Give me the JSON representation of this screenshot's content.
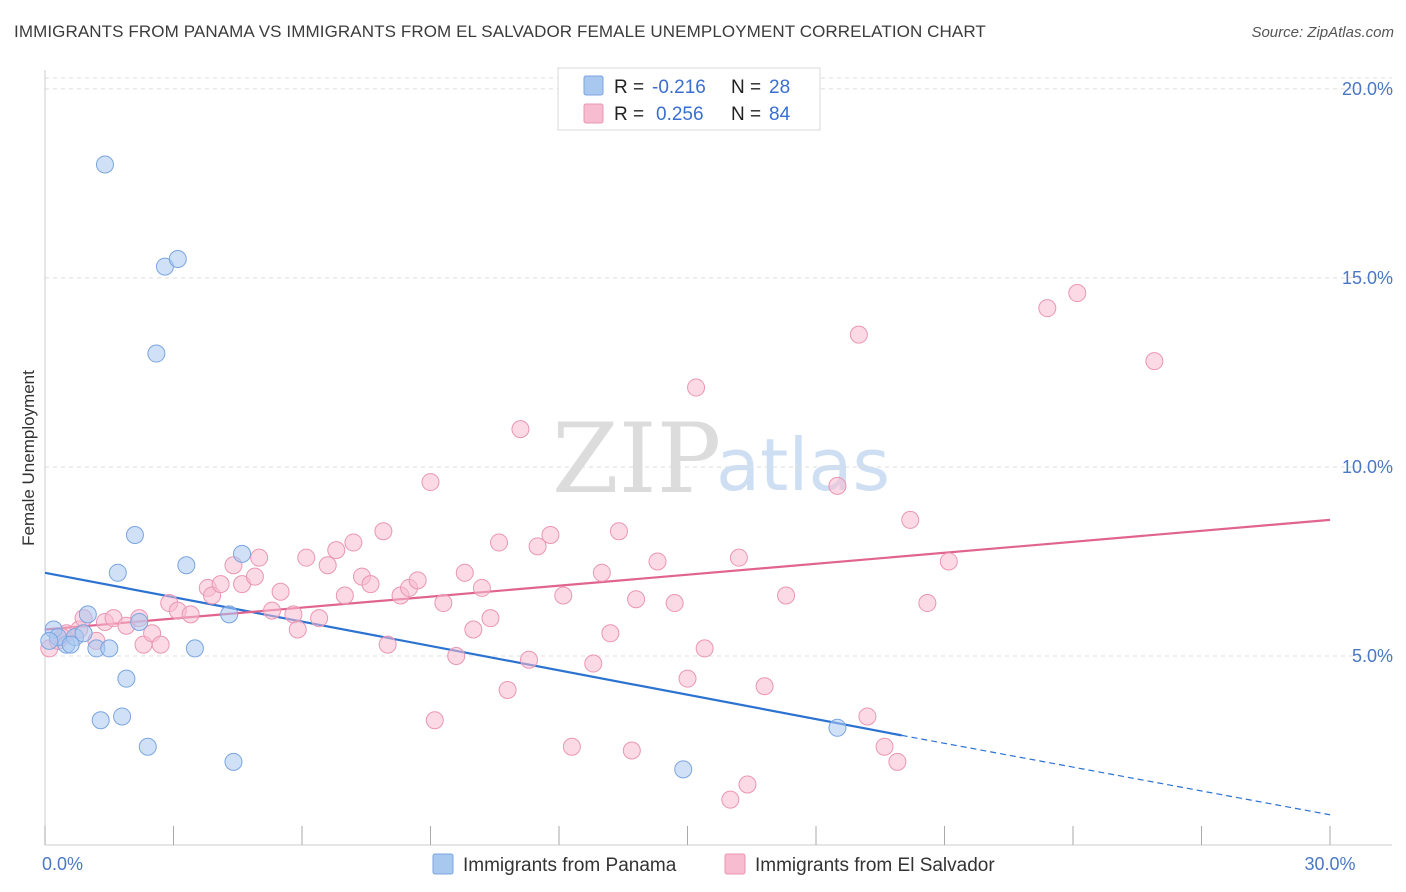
{
  "header": {
    "title": "IMMIGRANTS FROM PANAMA VS IMMIGRANTS FROM EL SALVADOR FEMALE UNEMPLOYMENT CORRELATION CHART",
    "source": "Source: ZipAtlas.com"
  },
  "watermark": {
    "zip": "ZIP",
    "atlas": "atlas"
  },
  "stats": {
    "r_label": "R =",
    "n_label": "N =",
    "rows": [
      {
        "r": "-0.216",
        "n": "28",
        "color": "#a9c8f0"
      },
      {
        "r": "0.256",
        "n": "84",
        "color": "#f7bcd0"
      }
    ]
  },
  "legend": {
    "items": [
      {
        "label": "Immigrants from Panama",
        "color": "#a9c8f0"
      },
      {
        "label": "Immigrants from El Salvador",
        "color": "#f7bcd0"
      }
    ]
  },
  "chart_data": {
    "type": "scatter",
    "ylabel": "Female Unemployment",
    "xlim": [
      0,
      30
    ],
    "ylim": [
      0,
      20.5
    ],
    "x_ticks_labeled": [
      {
        "value": 0,
        "label": "0.0%"
      },
      {
        "value": 30,
        "label": "30.0%"
      }
    ],
    "y_ticks": [
      {
        "value": 5,
        "label": "5.0%"
      },
      {
        "value": 10,
        "label": "10.0%"
      },
      {
        "value": 15,
        "label": "15.0%"
      },
      {
        "value": 20,
        "label": "20.0%"
      }
    ],
    "x_minor_ticks": [
      0,
      3,
      6,
      9,
      12,
      15,
      18,
      21,
      24,
      27,
      30
    ],
    "grid": true,
    "legend_position": "bottom-center",
    "series": [
      {
        "name": "Immigrants from Panama",
        "color": "#a9c8f0",
        "stroke": "#7aa5e0",
        "trend_color": "#2b72d1",
        "trend": {
          "x0": 0,
          "y0": 7.2,
          "x1": 20,
          "y1": 2.9,
          "dash_to_x": 30,
          "dash_to_y": 0.8
        },
        "points": [
          [
            1.4,
            18.0
          ],
          [
            2.8,
            15.3
          ],
          [
            3.1,
            15.5
          ],
          [
            2.6,
            13.0
          ],
          [
            2.1,
            8.2
          ],
          [
            1.7,
            7.2
          ],
          [
            3.3,
            7.4
          ],
          [
            4.6,
            7.7
          ],
          [
            0.2,
            5.7
          ],
          [
            0.5,
            5.3
          ],
          [
            0.7,
            5.5
          ],
          [
            1.0,
            6.1
          ],
          [
            1.2,
            5.2
          ],
          [
            1.5,
            5.2
          ],
          [
            0.3,
            5.5
          ],
          [
            0.9,
            5.6
          ],
          [
            2.2,
            5.9
          ],
          [
            3.5,
            5.2
          ],
          [
            4.3,
            6.1
          ],
          [
            1.9,
            4.4
          ],
          [
            1.3,
            3.3
          ],
          [
            1.8,
            3.4
          ],
          [
            2.4,
            2.6
          ],
          [
            4.4,
            2.2
          ],
          [
            14.9,
            2.0
          ],
          [
            18.5,
            3.1
          ],
          [
            0.1,
            5.4
          ],
          [
            0.6,
            5.3
          ]
        ]
      },
      {
        "name": "Immigrants from El Salvador",
        "color": "#f7bcd0",
        "stroke": "#eb96b4",
        "trend_color": "#e0648f",
        "trend": {
          "x0": 0,
          "y0": 5.7,
          "x1": 30,
          "y1": 8.6
        },
        "points": [
          [
            0.1,
            5.2
          ],
          [
            0.3,
            5.4
          ],
          [
            0.5,
            5.6
          ],
          [
            0.8,
            5.7
          ],
          [
            1.2,
            5.4
          ],
          [
            1.4,
            5.9
          ],
          [
            1.6,
            6.0
          ],
          [
            1.9,
            5.8
          ],
          [
            2.2,
            6.0
          ],
          [
            2.3,
            5.3
          ],
          [
            2.5,
            5.6
          ],
          [
            2.7,
            5.3
          ],
          [
            2.9,
            6.4
          ],
          [
            3.1,
            6.2
          ],
          [
            3.4,
            6.1
          ],
          [
            3.8,
            6.8
          ],
          [
            3.9,
            6.6
          ],
          [
            4.1,
            6.9
          ],
          [
            4.4,
            7.4
          ],
          [
            4.6,
            6.9
          ],
          [
            4.9,
            7.1
          ],
          [
            5.0,
            7.6
          ],
          [
            5.3,
            6.2
          ],
          [
            5.5,
            6.7
          ],
          [
            5.8,
            6.1
          ],
          [
            5.9,
            5.7
          ],
          [
            6.1,
            7.6
          ],
          [
            6.4,
            6.0
          ],
          [
            6.6,
            7.4
          ],
          [
            6.8,
            7.8
          ],
          [
            7.0,
            6.6
          ],
          [
            7.2,
            8.0
          ],
          [
            7.4,
            7.1
          ],
          [
            7.6,
            6.9
          ],
          [
            7.9,
            8.3
          ],
          [
            8.0,
            5.3
          ],
          [
            8.3,
            6.6
          ],
          [
            8.5,
            6.8
          ],
          [
            8.7,
            7.0
          ],
          [
            9.0,
            9.6
          ],
          [
            9.1,
            3.3
          ],
          [
            9.3,
            6.4
          ],
          [
            9.6,
            5.0
          ],
          [
            9.8,
            7.2
          ],
          [
            10.0,
            5.7
          ],
          [
            10.2,
            6.8
          ],
          [
            10.4,
            6.0
          ],
          [
            10.6,
            8.0
          ],
          [
            10.8,
            4.1
          ],
          [
            11.1,
            11.0
          ],
          [
            11.3,
            4.9
          ],
          [
            11.5,
            7.9
          ],
          [
            11.8,
            8.2
          ],
          [
            12.1,
            6.6
          ],
          [
            12.3,
            2.6
          ],
          [
            12.8,
            4.8
          ],
          [
            13.0,
            7.2
          ],
          [
            13.2,
            5.6
          ],
          [
            13.4,
            8.3
          ],
          [
            13.7,
            2.5
          ],
          [
            13.8,
            6.5
          ],
          [
            14.3,
            7.5
          ],
          [
            14.7,
            6.4
          ],
          [
            15.0,
            4.4
          ],
          [
            15.2,
            12.1
          ],
          [
            15.4,
            5.2
          ],
          [
            16.0,
            1.2
          ],
          [
            16.2,
            7.6
          ],
          [
            16.4,
            1.6
          ],
          [
            16.8,
            4.2
          ],
          [
            17.3,
            6.6
          ],
          [
            18.5,
            9.5
          ],
          [
            19.0,
            13.5
          ],
          [
            19.2,
            3.4
          ],
          [
            19.6,
            2.6
          ],
          [
            19.9,
            2.2
          ],
          [
            20.2,
            8.6
          ],
          [
            20.6,
            6.4
          ],
          [
            21.1,
            7.5
          ],
          [
            23.4,
            14.2
          ],
          [
            24.1,
            14.6
          ],
          [
            25.9,
            12.8
          ],
          [
            0.4,
            5.5
          ],
          [
            0.9,
            6.0
          ]
        ]
      }
    ]
  }
}
